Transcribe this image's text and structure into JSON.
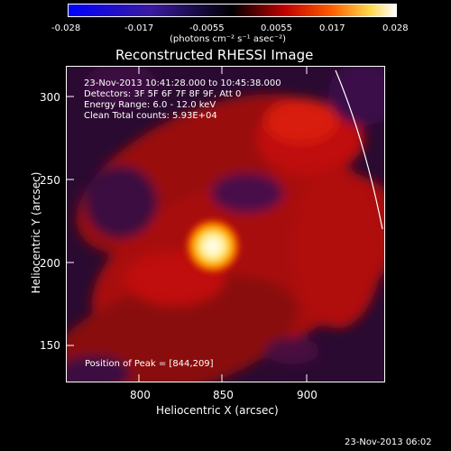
{
  "colorbar": {
    "ticks": [
      "-0.028",
      "-0.017",
      "-0.0055",
      "0.0055",
      "0.017",
      "0.028"
    ],
    "unit_label": "(photons cm⁻² s⁻¹ asec⁻²)"
  },
  "title": "Reconstructed RHESSI Image",
  "info": {
    "line1": "23-Nov-2013 10:41:28.000 to 10:45:38.000",
    "line2": "Detectors: 3F 5F 6F 7F 8F 9F, Att 0",
    "line3": "Energy Range: 6.0 - 12.0 keV",
    "line4": "Clean    Total counts: 5.93E+04"
  },
  "peak_label": "Position of Peak = [844,209]",
  "axes": {
    "x_label": "Heliocentric X (arcsec)",
    "y_label": "Heliocentric Y (arcsec)",
    "x_ticks": [
      "800",
      "850",
      "900"
    ],
    "y_ticks": [
      "300",
      "250",
      "200",
      "150"
    ],
    "x_range": [
      755,
      948
    ],
    "y_range": [
      130,
      322
    ]
  },
  "footer_timestamp": "23-Nov-2013 06:02",
  "colors": {
    "background": "#000000",
    "axis": "#ffffff",
    "limb_line": "#ffffff"
  }
}
